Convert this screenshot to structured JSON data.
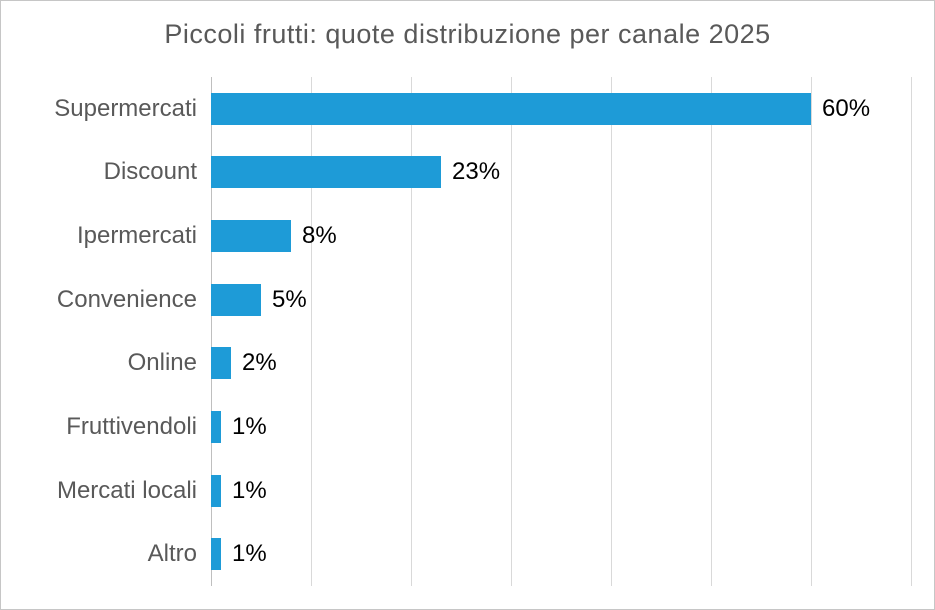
{
  "chart_data": {
    "type": "bar",
    "orientation": "horizontal",
    "title": "Piccoli frutti: quote distribuzione per canale 2025",
    "categories": [
      "Supermercati",
      "Discount",
      "Ipermercati",
      "Convenience",
      "Online",
      "Fruttivendoli",
      "Mercati locali",
      "Altro"
    ],
    "values": [
      60,
      23,
      8,
      5,
      2,
      1,
      1,
      1
    ],
    "labels": [
      "60%",
      "23%",
      "8%",
      "5%",
      "2%",
      "1%",
      "1%",
      "1%"
    ],
    "xlabel": "",
    "ylabel": "",
    "xlim": [
      0,
      70
    ],
    "gridline_interval": 10,
    "grid": true,
    "legend": false,
    "bar_color": "#1E9BD7",
    "category_label_color": "#595959",
    "value_label_color": "#000000",
    "gridline_color": "#d9d9d9",
    "axis_line_color": "#bfbfbf"
  }
}
